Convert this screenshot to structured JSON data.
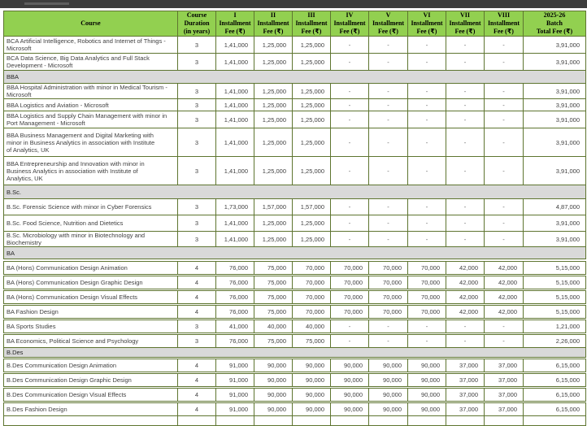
{
  "table": {
    "headers": {
      "course": "Course",
      "duration": "Course\nDuration\n(in years)",
      "installments": [
        "I\nInstallment\nFee (₹)",
        "II\nInstallment\nFee (₹)",
        "III\nInstallment\nFee (₹)",
        "IV\nInstallment\nFee (₹)",
        "V\nInstallment\nFee (₹)",
        "VI\nInstallment\nFee (₹)",
        "VII\nInstallment\nFee (₹)",
        "VIII\nInstallment\nFee (₹)"
      ],
      "total": "2025-26\nBatch\nTotal Fee (₹)"
    },
    "colors": {
      "header_bg": "#92d050",
      "border": "#5e7530",
      "section_band_bg": "#d9d9d9"
    },
    "sections": [
      {
        "label": null,
        "rows": [
          {
            "course": "BCA Artificial Intelligence, Robotics and Internet of Things - Microsoft",
            "duration": "3",
            "fees": [
              "1,41,000",
              "1,25,000",
              "1,25,000",
              "-",
              "-",
              "-",
              "-",
              "-"
            ],
            "total": "3,91,000"
          },
          {
            "course": "BCA Data Science, Big Data Analytics and Full Stack Development - Microsoft",
            "duration": "3",
            "fees": [
              "1,41,000",
              "1,25,000",
              "1,25,000",
              "-",
              "-",
              "-",
              "-",
              "-"
            ],
            "total": "3,91,000"
          }
        ]
      },
      {
        "label": "BBA",
        "rows": [
          {
            "course": "BBA Hospital Administration with minor in Medical Tourism - Microsoft",
            "duration": "3",
            "fees": [
              "1,41,000",
              "1,25,000",
              "1,25,000",
              "-",
              "-",
              "-",
              "-",
              "-"
            ],
            "total": "3,91,000"
          },
          {
            "course": "BBA Logistics and Aviation - Microsoft",
            "duration": "3",
            "fees": [
              "1,41,000",
              "1,25,000",
              "1,25,000",
              "-",
              "-",
              "-",
              "-",
              "-"
            ],
            "total": "3,91,000"
          },
          {
            "course": "BBA Logistics and Supply Chain Management with minor in Port Management - Microsoft",
            "duration": "3",
            "fees": [
              "1,41,000",
              "1,25,000",
              "1,25,000",
              "-",
              "-",
              "-",
              "-",
              "-"
            ],
            "total": "3,91,000"
          },
          {
            "course": "BBA Business Management and Digital Marketing with minor in Business Analytics in association with Institute of Analytics, UK",
            "duration": "3",
            "fees": [
              "1,41,000",
              "1,25,000",
              "1,25,000",
              "-",
              "-",
              "-",
              "-",
              "-"
            ],
            "total": "3,91,000"
          },
          {
            "course": "BBA Entrepreneurship and Innovation with minor in Business Analytics in association with Institute of Analytics, UK",
            "duration": "3",
            "fees": [
              "1,41,000",
              "1,25,000",
              "1,25,000",
              "-",
              "-",
              "-",
              "-",
              "-"
            ],
            "total": "3,91,000"
          }
        ]
      },
      {
        "label": "B.Sc.",
        "rows": [
          {
            "course": "B.Sc. Forensic Science with minor in Cyber Forensics",
            "duration": "3",
            "fees": [
              "1,73,000",
              "1,57,000",
              "1,57,000",
              "-",
              "-",
              "-",
              "-",
              "-"
            ],
            "total": "4,87,000"
          },
          {
            "course": "B.Sc. Food Science, Nutrition and Dietetics",
            "duration": "3",
            "fees": [
              "1,41,000",
              "1,25,000",
              "1,25,000",
              "-",
              "-",
              "-",
              "-",
              "-"
            ],
            "total": "3,91,000"
          },
          {
            "course": "B.Sc. Microbiology with minor in Biotechnology and Biochemistry",
            "duration": "3",
            "fees": [
              "1,41,000",
              "1,25,000",
              "1,25,000",
              "-",
              "-",
              "-",
              "-",
              "-"
            ],
            "total": "3,91,000"
          }
        ]
      },
      {
        "label": "BA",
        "rows": [
          {
            "course": "BA (Hons) Communication Design Animation",
            "duration": "4",
            "fees": [
              "76,000",
              "75,000",
              "70,000",
              "70,000",
              "70,000",
              "70,000",
              "42,000",
              "42,000"
            ],
            "total": "5,15,000"
          },
          {
            "course": "BA (Hons) Communication Design Graphic Design",
            "duration": "4",
            "fees": [
              "76,000",
              "75,000",
              "70,000",
              "70,000",
              "70,000",
              "70,000",
              "42,000",
              "42,000"
            ],
            "total": "5,15,000"
          },
          {
            "course": "BA (Hons) Communication Design Visual Effects",
            "duration": "4",
            "fees": [
              "76,000",
              "75,000",
              "70,000",
              "70,000",
              "70,000",
              "70,000",
              "42,000",
              "42,000"
            ],
            "total": "5,15,000"
          },
          {
            "course": "BA Fashion Design",
            "duration": "4",
            "fees": [
              "76,000",
              "75,000",
              "70,000",
              "70,000",
              "70,000",
              "70,000",
              "42,000",
              "42,000"
            ],
            "total": "5,15,000"
          },
          {
            "course": "BA Sports Studies",
            "duration": "3",
            "fees": [
              "41,000",
              "40,000",
              "40,000",
              "-",
              "-",
              "-",
              "-",
              "-"
            ],
            "total": "1,21,000"
          },
          {
            "course": "BA Economics, Political Science and Psychology",
            "duration": "3",
            "fees": [
              "76,000",
              "75,000",
              "75,000",
              "-",
              "-",
              "-",
              "-",
              "-"
            ],
            "total": "2,26,000"
          }
        ]
      },
      {
        "label": "B.Des",
        "rows": [
          {
            "course": "B.Des Communication Design Animation",
            "duration": "4",
            "fees": [
              "91,000",
              "90,000",
              "90,000",
              "90,000",
              "90,000",
              "90,000",
              "37,000",
              "37,000"
            ],
            "total": "6,15,000"
          },
          {
            "course": "B.Des Communication Design Graphic Design",
            "duration": "4",
            "fees": [
              "91,000",
              "90,000",
              "90,000",
              "90,000",
              "90,000",
              "90,000",
              "37,000",
              "37,000"
            ],
            "total": "6,15,000"
          },
          {
            "course": "B.Des Communication Design Visual Effects",
            "duration": "4",
            "fees": [
              "91,000",
              "90,000",
              "90,000",
              "90,000",
              "90,000",
              "90,000",
              "37,000",
              "37,000"
            ],
            "total": "6,15,000"
          },
          {
            "course": "B.Des Fashion Design",
            "duration": "4",
            "fees": [
              "91,000",
              "90,000",
              "90,000",
              "90,000",
              "90,000",
              "90,000",
              "37,000",
              "37,000"
            ],
            "total": "6,15,000"
          }
        ]
      }
    ]
  }
}
